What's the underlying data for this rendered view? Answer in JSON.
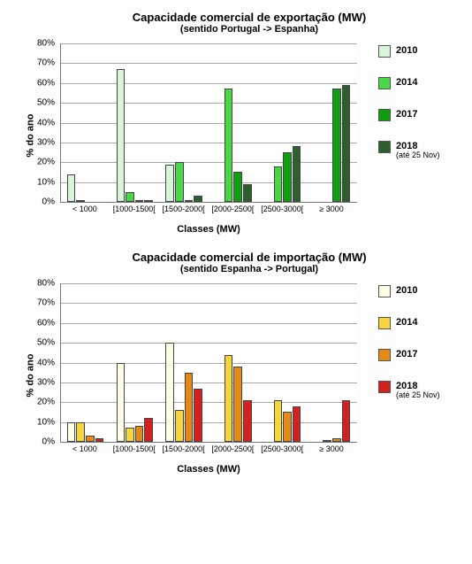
{
  "page_background": "#fdfdfd",
  "charts": [
    {
      "title": "Capacidade comercial de exportação (MW)",
      "subtitle": "(sentido Portugal -> Espanha)",
      "ylabel": "% do ano",
      "xlabel": "Classes (MW)",
      "ylim": [
        0,
        80
      ],
      "ytick_step": 10,
      "ytick_suffix": "%",
      "plot_bg": "#ffffff",
      "grid_color": "#aaaaaa",
      "axis_color": "#777777",
      "bar_border": "#444444",
      "categories": [
        "< 1000",
        "[1000-1500[",
        "[1500-2000[",
        "[2000-2500[",
        "[2500-3000[",
        "≥ 3000"
      ],
      "series": [
        {
          "name": "2010",
          "color": "#d8f5d9",
          "values": [
            14,
            67,
            19,
            0,
            0,
            0
          ]
        },
        {
          "name": "2014",
          "color": "#49d845",
          "values": [
            0.5,
            5,
            20,
            57,
            18,
            0
          ]
        },
        {
          "name": "2017",
          "color": "#0e9f10",
          "values": [
            0,
            0.5,
            0.5,
            15,
            25,
            57
          ]
        },
        {
          "name": "2018",
          "color": "#2e5f2e",
          "values": [
            0,
            1,
            3,
            9,
            28,
            59
          ],
          "sublabel": "(até 25 Nov)"
        }
      ]
    },
    {
      "title": "Capacidade comercial de importação (MW)",
      "subtitle": "(sentido Espanha -> Portugal)",
      "ylabel": "% do ano",
      "xlabel": "Classes (MW)",
      "ylim": [
        0,
        80
      ],
      "ytick_step": 10,
      "ytick_suffix": "%",
      "plot_bg": "#ffffff",
      "grid_color": "#aaaaaa",
      "axis_color": "#777777",
      "bar_border": "#444444",
      "categories": [
        "< 1000",
        "[1000-1500[",
        "[1500-2000[",
        "[2000-2500[",
        "[2500-3000[",
        "≥ 3000"
      ],
      "series": [
        {
          "name": "2010",
          "color": "#fffde6",
          "values": [
            10,
            40,
            50,
            0,
            0,
            0
          ]
        },
        {
          "name": "2014",
          "color": "#f5d43e",
          "values": [
            10,
            7,
            16,
            44,
            21,
            1
          ]
        },
        {
          "name": "2017",
          "color": "#e68a17",
          "values": [
            3,
            8,
            35,
            38,
            15,
            2
          ]
        },
        {
          "name": "2018",
          "color": "#d4201e",
          "values": [
            2,
            12,
            27,
            21,
            18,
            21
          ],
          "sublabel": "(até 25 Nov)"
        }
      ]
    }
  ]
}
